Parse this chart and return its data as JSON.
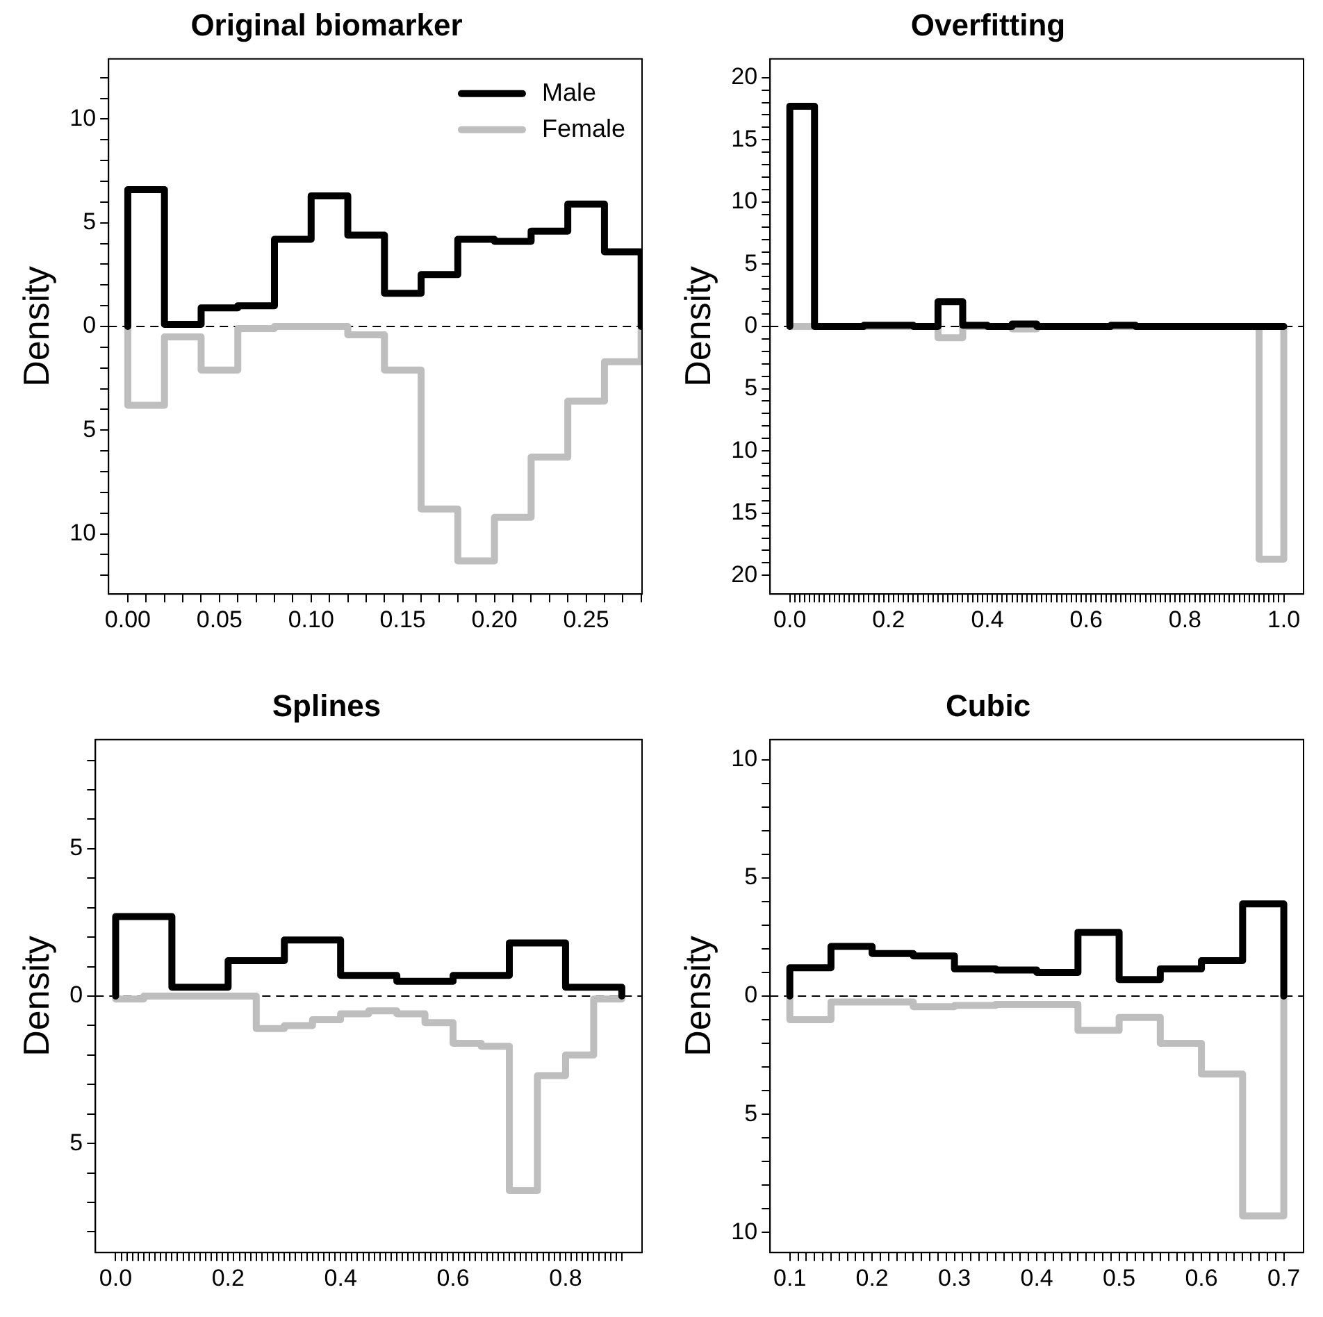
{
  "chart_data": [
    {
      "type": "histogram",
      "title": "Original biomarker",
      "ylabel": "Density",
      "legend": "top right",
      "bins": [
        0,
        0.02,
        0.04,
        0.06,
        0.08,
        0.1,
        0.12,
        0.14,
        0.16,
        0.18,
        0.2,
        0.22,
        0.24,
        0.26,
        0.28
      ],
      "series": [
        {
          "name": "Male",
          "color": "#000000",
          "values": [
            6.6,
            0.1,
            0.9,
            1.0,
            4.2,
            6.3,
            4.4,
            1.6,
            2.5,
            4.2,
            4.1,
            4.6,
            5.9,
            3.6
          ]
        },
        {
          "name": "Female",
          "color": "#bebebe",
          "values": [
            -3.8,
            -0.5,
            -2.1,
            -0.1,
            0,
            0,
            -0.4,
            -2.1,
            -8.8,
            -11.3,
            -9.2,
            -6.3,
            -3.6,
            -1.7
          ]
        }
      ],
      "xlim": [
        -0.0105,
        0.2805
      ],
      "ylim": [
        -12.9,
        12.9
      ],
      "xticks": [
        {
          "value": 0,
          "label": "0.00"
        },
        {
          "value": 0.01,
          "label": null
        },
        {
          "value": 0.02,
          "label": null
        },
        {
          "value": 0.03,
          "label": null
        },
        {
          "value": 0.04,
          "label": null
        },
        0.05,
        {
          "value": 0.06,
          "label": null
        },
        {
          "value": 0.07,
          "label": null
        },
        {
          "value": 0.08,
          "label": null
        },
        {
          "value": 0.09,
          "label": null
        },
        {
          "value": 0.1,
          "label": "0.10"
        },
        {
          "value": 0.11,
          "label": null
        },
        {
          "value": 0.12,
          "label": null
        },
        {
          "value": 0.13,
          "label": null
        },
        {
          "value": 0.14,
          "label": null
        },
        0.15,
        {
          "value": 0.16,
          "label": null
        },
        {
          "value": 0.17,
          "label": null
        },
        {
          "value": 0.18,
          "label": null
        },
        {
          "value": 0.19,
          "label": null
        },
        {
          "value": 0.2,
          "label": "0.20"
        },
        {
          "value": 0.21,
          "label": null
        },
        {
          "value": 0.22,
          "label": null
        },
        {
          "value": 0.23,
          "label": null
        },
        {
          "value": 0.24,
          "label": null
        },
        0.25,
        {
          "value": 0.26,
          "label": null
        },
        {
          "value": 0.27,
          "label": null
        },
        {
          "value": 0.28,
          "label": null
        }
      ],
      "yticks": [
        {
          "value": -12,
          "label": null
        },
        {
          "value": -11,
          "label": null
        },
        {
          "value": -10,
          "label": "10"
        },
        {
          "value": -9,
          "label": null
        },
        {
          "value": -8,
          "label": null
        },
        {
          "value": -7,
          "label": null
        },
        {
          "value": -6,
          "label": null
        },
        {
          "value": -5,
          "label": "5"
        },
        {
          "value": -4,
          "label": null
        },
        {
          "value": -3,
          "label": null
        },
        {
          "value": -2,
          "label": null
        },
        {
          "value": -1,
          "label": null
        },
        0,
        {
          "value": 1,
          "label": null
        },
        {
          "value": 2,
          "label": null
        },
        {
          "value": 3,
          "label": null
        },
        {
          "value": 4,
          "label": null
        },
        5,
        {
          "value": 6,
          "label": null
        },
        {
          "value": 7,
          "label": null
        },
        {
          "value": 8,
          "label": null
        },
        {
          "value": 9,
          "label": null
        },
        10,
        {
          "value": 11,
          "label": null
        },
        {
          "value": 12,
          "label": null
        }
      ],
      "ref_lines": [
        {
          "axis": "y",
          "value": 0,
          "color": "#000000",
          "line_style": "dashed"
        }
      ]
    },
    {
      "type": "histogram",
      "title": "Overfitting",
      "ylabel": "Density",
      "bins": [
        0,
        0.05,
        0.1,
        0.15,
        0.2,
        0.25,
        0.3,
        0.35,
        0.4,
        0.45,
        0.5,
        0.55,
        0.6,
        0.65,
        0.7,
        0.75,
        0.8,
        0.85,
        0.9,
        0.95,
        1
      ],
      "series": [
        {
          "color": "#000000",
          "values": [
            17.7,
            0,
            0,
            0.1,
            0.1,
            0,
            2.0,
            0.1,
            0,
            0.2,
            0,
            0,
            0,
            0.1,
            0,
            0,
            0,
            0,
            0,
            0
          ]
        },
        {
          "color": "#bebebe",
          "values": [
            0,
            0,
            0,
            0,
            0,
            0,
            -0.9,
            0,
            0,
            -0.2,
            0,
            0,
            0,
            0,
            0,
            0,
            0,
            0,
            0,
            -18.7
          ]
        }
      ],
      "xlim": [
        -0.04,
        1.04
      ],
      "ylim": [
        -21.5,
        21.5
      ],
      "xticks": [
        {
          "value": 0,
          "label": "0.0"
        },
        {
          "value": 0.01,
          "label": null
        },
        {
          "value": 0.02,
          "label": null
        },
        {
          "value": 0.03,
          "label": null
        },
        {
          "value": 0.04,
          "label": null
        },
        {
          "value": 0.05,
          "label": null
        },
        {
          "value": 0.06,
          "label": null
        },
        {
          "value": 0.07,
          "label": null
        },
        {
          "value": 0.08,
          "label": null
        },
        {
          "value": 0.09,
          "label": null
        },
        {
          "value": 0.1,
          "label": null
        },
        {
          "value": 0.11,
          "label": null
        },
        {
          "value": 0.12,
          "label": null
        },
        {
          "value": 0.13,
          "label": null
        },
        {
          "value": 0.14,
          "label": null
        },
        {
          "value": 0.15,
          "label": null
        },
        {
          "value": 0.16,
          "label": null
        },
        {
          "value": 0.17,
          "label": null
        },
        {
          "value": 0.18,
          "label": null
        },
        {
          "value": 0.19,
          "label": null
        },
        0.2,
        {
          "value": 0.21,
          "label": null
        },
        {
          "value": 0.22,
          "label": null
        },
        {
          "value": 0.23,
          "label": null
        },
        {
          "value": 0.24,
          "label": null
        },
        {
          "value": 0.25,
          "label": null
        },
        {
          "value": 0.26,
          "label": null
        },
        {
          "value": 0.27,
          "label": null
        },
        {
          "value": 0.28,
          "label": null
        },
        {
          "value": 0.29,
          "label": null
        },
        {
          "value": 0.3,
          "label": null
        },
        {
          "value": 0.31,
          "label": null
        },
        {
          "value": 0.32,
          "label": null
        },
        {
          "value": 0.33,
          "label": null
        },
        {
          "value": 0.34,
          "label": null
        },
        {
          "value": 0.35,
          "label": null
        },
        {
          "value": 0.36,
          "label": null
        },
        {
          "value": 0.37,
          "label": null
        },
        {
          "value": 0.38,
          "label": null
        },
        {
          "value": 0.39,
          "label": null
        },
        0.4,
        {
          "value": 0.41,
          "label": null
        },
        {
          "value": 0.42,
          "label": null
        },
        {
          "value": 0.43,
          "label": null
        },
        {
          "value": 0.44,
          "label": null
        },
        {
          "value": 0.45,
          "label": null
        },
        {
          "value": 0.46,
          "label": null
        },
        {
          "value": 0.47,
          "label": null
        },
        {
          "value": 0.48,
          "label": null
        },
        {
          "value": 0.49,
          "label": null
        },
        {
          "value": 0.5,
          "label": null
        },
        {
          "value": 0.51,
          "label": null
        },
        {
          "value": 0.52,
          "label": null
        },
        {
          "value": 0.53,
          "label": null
        },
        {
          "value": 0.54,
          "label": null
        },
        {
          "value": 0.55,
          "label": null
        },
        {
          "value": 0.56,
          "label": null
        },
        {
          "value": 0.57,
          "label": null
        },
        {
          "value": 0.58,
          "label": null
        },
        {
          "value": 0.59,
          "label": null
        },
        0.6,
        {
          "value": 0.61,
          "label": null
        },
        {
          "value": 0.62,
          "label": null
        },
        {
          "value": 0.63,
          "label": null
        },
        {
          "value": 0.64,
          "label": null
        },
        {
          "value": 0.65,
          "label": null
        },
        {
          "value": 0.66,
          "label": null
        },
        {
          "value": 0.67,
          "label": null
        },
        {
          "value": 0.68,
          "label": null
        },
        {
          "value": 0.69,
          "label": null
        },
        {
          "value": 0.7,
          "label": null
        },
        {
          "value": 0.71,
          "label": null
        },
        {
          "value": 0.72,
          "label": null
        },
        {
          "value": 0.73,
          "label": null
        },
        {
          "value": 0.74,
          "label": null
        },
        {
          "value": 0.75,
          "label": null
        },
        {
          "value": 0.76,
          "label": null
        },
        {
          "value": 0.77,
          "label": null
        },
        {
          "value": 0.78,
          "label": null
        },
        {
          "value": 0.79,
          "label": null
        },
        0.8,
        {
          "value": 0.81,
          "label": null
        },
        {
          "value": 0.82,
          "label": null
        },
        {
          "value": 0.83,
          "label": null
        },
        {
          "value": 0.84,
          "label": null
        },
        {
          "value": 0.85,
          "label": null
        },
        {
          "value": 0.86,
          "label": null
        },
        {
          "value": 0.87,
          "label": null
        },
        {
          "value": 0.88,
          "label": null
        },
        {
          "value": 0.89,
          "label": null
        },
        {
          "value": 0.9,
          "label": null
        },
        {
          "value": 0.91,
          "label": null
        },
        {
          "value": 0.92,
          "label": null
        },
        {
          "value": 0.93,
          "label": null
        },
        {
          "value": 0.94,
          "label": null
        },
        {
          "value": 0.95,
          "label": null
        },
        {
          "value": 0.96,
          "label": null
        },
        {
          "value": 0.97,
          "label": null
        },
        {
          "value": 0.98,
          "label": null
        },
        {
          "value": 0.99,
          "label": null
        },
        {
          "value": 1,
          "label": "1.0"
        }
      ],
      "yticks": [
        {
          "value": -20,
          "label": "20"
        },
        {
          "value": -19,
          "label": null
        },
        {
          "value": -18,
          "label": null
        },
        {
          "value": -17,
          "label": null
        },
        {
          "value": -16,
          "label": null
        },
        {
          "value": -15,
          "label": "15"
        },
        {
          "value": -14,
          "label": null
        },
        {
          "value": -13,
          "label": null
        },
        {
          "value": -12,
          "label": null
        },
        {
          "value": -11,
          "label": null
        },
        {
          "value": -10,
          "label": "10"
        },
        {
          "value": -9,
          "label": null
        },
        {
          "value": -8,
          "label": null
        },
        {
          "value": -7,
          "label": null
        },
        {
          "value": -6,
          "label": null
        },
        {
          "value": -5,
          "label": "5"
        },
        {
          "value": -4,
          "label": null
        },
        {
          "value": -3,
          "label": null
        },
        {
          "value": -2,
          "label": null
        },
        {
          "value": -1,
          "label": null
        },
        0,
        {
          "value": 1,
          "label": null
        },
        {
          "value": 2,
          "label": null
        },
        {
          "value": 3,
          "label": null
        },
        {
          "value": 4,
          "label": null
        },
        5,
        {
          "value": 6,
          "label": null
        },
        {
          "value": 7,
          "label": null
        },
        {
          "value": 8,
          "label": null
        },
        {
          "value": 9,
          "label": null
        },
        10,
        {
          "value": 11,
          "label": null
        },
        {
          "value": 12,
          "label": null
        },
        {
          "value": 13,
          "label": null
        },
        {
          "value": 14,
          "label": null
        },
        15,
        {
          "value": 16,
          "label": null
        },
        {
          "value": 17,
          "label": null
        },
        {
          "value": 18,
          "label": null
        },
        {
          "value": 19,
          "label": null
        },
        20
      ],
      "ref_lines": [
        {
          "axis": "y",
          "value": 0,
          "color": "#000000",
          "line_style": "dashed"
        }
      ]
    },
    {
      "type": "histogram",
      "title": "Splines",
      "ylabel": "Density",
      "bins": [
        0,
        0.1,
        0.2,
        0.3,
        0.4,
        0.5,
        0.6,
        0.7,
        0.8,
        0.9
      ],
      "series": [
        {
          "color": "#000000",
          "values": [
            2.7,
            0.3,
            1.2,
            1.9,
            0.7,
            0.5,
            0.7,
            1.8,
            0.3
          ]
        },
        {
          "color": "#bebebe",
          "bins": [
            0,
            0.05,
            0.1,
            0.15,
            0.2,
            0.25,
            0.3,
            0.35,
            0.4,
            0.45,
            0.5,
            0.55,
            0.6,
            0.65,
            0.7,
            0.75,
            0.8,
            0.85,
            0.9
          ],
          "values": [
            -0.1,
            0,
            0,
            0,
            0,
            -1.1,
            -1.0,
            -0.8,
            -0.6,
            -0.5,
            -0.6,
            -0.9,
            -1.6,
            -1.7,
            -6.6,
            -2.7,
            -2.0,
            -0.1
          ]
        }
      ],
      "xlim": [
        -0.036,
        0.936
      ],
      "ylim": [
        -8.7,
        8.7
      ],
      "xticks": [
        {
          "value": 0,
          "label": "0.0"
        },
        {
          "value": 0.01,
          "label": null
        },
        {
          "value": 0.02,
          "label": null
        },
        {
          "value": 0.03,
          "label": null
        },
        {
          "value": 0.04,
          "label": null
        },
        {
          "value": 0.05,
          "label": null
        },
        {
          "value": 0.06,
          "label": null
        },
        {
          "value": 0.07,
          "label": null
        },
        {
          "value": 0.08,
          "label": null
        },
        {
          "value": 0.09,
          "label": null
        },
        {
          "value": 0.1,
          "label": null
        },
        {
          "value": 0.11,
          "label": null
        },
        {
          "value": 0.12,
          "label": null
        },
        {
          "value": 0.13,
          "label": null
        },
        {
          "value": 0.14,
          "label": null
        },
        {
          "value": 0.15,
          "label": null
        },
        {
          "value": 0.16,
          "label": null
        },
        {
          "value": 0.17,
          "label": null
        },
        {
          "value": 0.18,
          "label": null
        },
        {
          "value": 0.19,
          "label": null
        },
        0.2,
        {
          "value": 0.21,
          "label": null
        },
        {
          "value": 0.22,
          "label": null
        },
        {
          "value": 0.23,
          "label": null
        },
        {
          "value": 0.24,
          "label": null
        },
        {
          "value": 0.25,
          "label": null
        },
        {
          "value": 0.26,
          "label": null
        },
        {
          "value": 0.27,
          "label": null
        },
        {
          "value": 0.28,
          "label": null
        },
        {
          "value": 0.29,
          "label": null
        },
        {
          "value": 0.3,
          "label": null
        },
        {
          "value": 0.31,
          "label": null
        },
        {
          "value": 0.32,
          "label": null
        },
        {
          "value": 0.33,
          "label": null
        },
        {
          "value": 0.34,
          "label": null
        },
        {
          "value": 0.35,
          "label": null
        },
        {
          "value": 0.36,
          "label": null
        },
        {
          "value": 0.37,
          "label": null
        },
        {
          "value": 0.38,
          "label": null
        },
        {
          "value": 0.39,
          "label": null
        },
        0.4,
        {
          "value": 0.41,
          "label": null
        },
        {
          "value": 0.42,
          "label": null
        },
        {
          "value": 0.43,
          "label": null
        },
        {
          "value": 0.44,
          "label": null
        },
        {
          "value": 0.45,
          "label": null
        },
        {
          "value": 0.46,
          "label": null
        },
        {
          "value": 0.47,
          "label": null
        },
        {
          "value": 0.48,
          "label": null
        },
        {
          "value": 0.49,
          "label": null
        },
        {
          "value": 0.5,
          "label": null
        },
        {
          "value": 0.51,
          "label": null
        },
        {
          "value": 0.52,
          "label": null
        },
        {
          "value": 0.53,
          "label": null
        },
        {
          "value": 0.54,
          "label": null
        },
        {
          "value": 0.55,
          "label": null
        },
        {
          "value": 0.56,
          "label": null
        },
        {
          "value": 0.57,
          "label": null
        },
        {
          "value": 0.58,
          "label": null
        },
        {
          "value": 0.59,
          "label": null
        },
        0.6,
        {
          "value": 0.61,
          "label": null
        },
        {
          "value": 0.62,
          "label": null
        },
        {
          "value": 0.63,
          "label": null
        },
        {
          "value": 0.64,
          "label": null
        },
        {
          "value": 0.65,
          "label": null
        },
        {
          "value": 0.66,
          "label": null
        },
        {
          "value": 0.67,
          "label": null
        },
        {
          "value": 0.68,
          "label": null
        },
        {
          "value": 0.69,
          "label": null
        },
        {
          "value": 0.7,
          "label": null
        },
        {
          "value": 0.71,
          "label": null
        },
        {
          "value": 0.72,
          "label": null
        },
        {
          "value": 0.73,
          "label": null
        },
        {
          "value": 0.74,
          "label": null
        },
        {
          "value": 0.75,
          "label": null
        },
        {
          "value": 0.76,
          "label": null
        },
        {
          "value": 0.77,
          "label": null
        },
        {
          "value": 0.78,
          "label": null
        },
        {
          "value": 0.79,
          "label": null
        },
        0.8,
        {
          "value": 0.81,
          "label": null
        },
        {
          "value": 0.82,
          "label": null
        },
        {
          "value": 0.83,
          "label": null
        },
        {
          "value": 0.84,
          "label": null
        },
        {
          "value": 0.85,
          "label": null
        },
        {
          "value": 0.86,
          "label": null
        },
        {
          "value": 0.87,
          "label": null
        },
        {
          "value": 0.88,
          "label": null
        },
        {
          "value": 0.89,
          "label": null
        },
        {
          "value": 0.9,
          "label": null
        }
      ],
      "yticks": [
        {
          "value": -8,
          "label": null
        },
        {
          "value": -7,
          "label": null
        },
        {
          "value": -6,
          "label": null
        },
        {
          "value": -5,
          "label": "5"
        },
        {
          "value": -4,
          "label": null
        },
        {
          "value": -3,
          "label": null
        },
        {
          "value": -2,
          "label": null
        },
        {
          "value": -1,
          "label": null
        },
        0,
        {
          "value": 1,
          "label": null
        },
        {
          "value": 2,
          "label": null
        },
        {
          "value": 3,
          "label": null
        },
        {
          "value": 4,
          "label": null
        },
        5,
        {
          "value": 6,
          "label": null
        },
        {
          "value": 7,
          "label": null
        },
        {
          "value": 8,
          "label": null
        }
      ],
      "ref_lines": [
        {
          "axis": "y",
          "value": 0,
          "color": "#000000",
          "line_style": "dashed"
        }
      ]
    },
    {
      "type": "histogram",
      "title": "Cubic",
      "ylabel": "Density",
      "bins": [
        0.1,
        0.15,
        0.2,
        0.25,
        0.3,
        0.35,
        0.4,
        0.45,
        0.5,
        0.55,
        0.6,
        0.65,
        0.7
      ],
      "series": [
        {
          "color": "#000000",
          "values": [
            1.2,
            2.1,
            1.8,
            1.7,
            1.15,
            1.1,
            1.0,
            2.7,
            0.7,
            1.15,
            1.5,
            3.9
          ]
        },
        {
          "color": "#bebebe",
          "values": [
            -1.0,
            -0.25,
            -0.25,
            -0.45,
            -0.4,
            -0.35,
            -0.35,
            -1.45,
            -0.9,
            -2.0,
            -3.3,
            -9.3
          ]
        }
      ],
      "xlim": [
        0.076,
        0.724
      ],
      "ylim": [
        -10.85,
        10.85
      ],
      "xticks": [
        0.1,
        {
          "value": 0.11,
          "label": null
        },
        {
          "value": 0.12,
          "label": null
        },
        {
          "value": 0.13,
          "label": null
        },
        {
          "value": 0.14,
          "label": null
        },
        {
          "value": 0.15,
          "label": null
        },
        {
          "value": 0.16,
          "label": null
        },
        {
          "value": 0.17,
          "label": null
        },
        {
          "value": 0.18,
          "label": null
        },
        {
          "value": 0.19,
          "label": null
        },
        0.2,
        {
          "value": 0.21,
          "label": null
        },
        {
          "value": 0.22,
          "label": null
        },
        {
          "value": 0.23,
          "label": null
        },
        {
          "value": 0.24,
          "label": null
        },
        {
          "value": 0.25,
          "label": null
        },
        {
          "value": 0.26,
          "label": null
        },
        {
          "value": 0.27,
          "label": null
        },
        {
          "value": 0.28,
          "label": null
        },
        {
          "value": 0.29,
          "label": null
        },
        0.3,
        {
          "value": 0.31,
          "label": null
        },
        {
          "value": 0.32,
          "label": null
        },
        {
          "value": 0.33,
          "label": null
        },
        {
          "value": 0.34,
          "label": null
        },
        {
          "value": 0.35,
          "label": null
        },
        {
          "value": 0.36,
          "label": null
        },
        {
          "value": 0.37,
          "label": null
        },
        {
          "value": 0.38,
          "label": null
        },
        {
          "value": 0.39,
          "label": null
        },
        0.4,
        {
          "value": 0.41,
          "label": null
        },
        {
          "value": 0.42,
          "label": null
        },
        {
          "value": 0.43,
          "label": null
        },
        {
          "value": 0.44,
          "label": null
        },
        {
          "value": 0.45,
          "label": null
        },
        {
          "value": 0.46,
          "label": null
        },
        {
          "value": 0.47,
          "label": null
        },
        {
          "value": 0.48,
          "label": null
        },
        {
          "value": 0.49,
          "label": null
        },
        0.5,
        {
          "value": 0.51,
          "label": null
        },
        {
          "value": 0.52,
          "label": null
        },
        {
          "value": 0.53,
          "label": null
        },
        {
          "value": 0.54,
          "label": null
        },
        {
          "value": 0.55,
          "label": null
        },
        {
          "value": 0.56,
          "label": null
        },
        {
          "value": 0.57,
          "label": null
        },
        {
          "value": 0.58,
          "label": null
        },
        {
          "value": 0.59,
          "label": null
        },
        0.6,
        {
          "value": 0.61,
          "label": null
        },
        {
          "value": 0.62,
          "label": null
        },
        {
          "value": 0.63,
          "label": null
        },
        {
          "value": 0.64,
          "label": null
        },
        {
          "value": 0.65,
          "label": null
        },
        {
          "value": 0.66,
          "label": null
        },
        {
          "value": 0.67,
          "label": null
        },
        {
          "value": 0.68,
          "label": null
        },
        {
          "value": 0.69,
          "label": null
        },
        0.7
      ],
      "yticks": [
        {
          "value": -10,
          "label": "10"
        },
        {
          "value": -9,
          "label": null
        },
        {
          "value": -8,
          "label": null
        },
        {
          "value": -7,
          "label": null
        },
        {
          "value": -6,
          "label": null
        },
        {
          "value": -5,
          "label": "5"
        },
        {
          "value": -4,
          "label": null
        },
        {
          "value": -3,
          "label": null
        },
        {
          "value": -2,
          "label": null
        },
        {
          "value": -1,
          "label": null
        },
        0,
        {
          "value": 1,
          "label": null
        },
        {
          "value": 2,
          "label": null
        },
        {
          "value": 3,
          "label": null
        },
        {
          "value": 4,
          "label": null
        },
        5,
        {
          "value": 6,
          "label": null
        },
        {
          "value": 7,
          "label": null
        },
        {
          "value": 8,
          "label": null
        },
        {
          "value": 9,
          "label": null
        },
        10
      ],
      "ref_lines": [
        {
          "axis": "y",
          "value": 0,
          "color": "#000000",
          "line_style": "dashed"
        }
      ]
    }
  ]
}
